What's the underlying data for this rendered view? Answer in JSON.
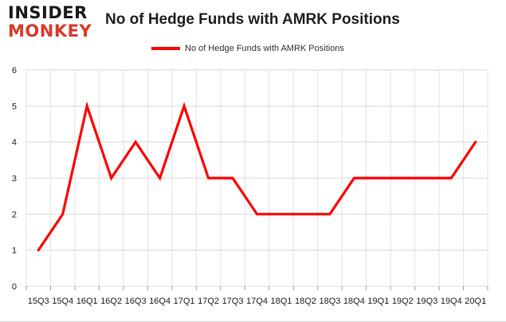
{
  "logo": {
    "line1": "INSIDER",
    "line2": "MONKEY"
  },
  "chart_data": {
    "type": "line",
    "title": "No of Hedge Funds with AMRK Positions",
    "xlabel": "",
    "ylabel": "",
    "categories": [
      "15Q3",
      "15Q4",
      "16Q1",
      "16Q2",
      "16Q3",
      "16Q4",
      "17Q1",
      "17Q2",
      "17Q3",
      "17Q4",
      "18Q1",
      "18Q2",
      "18Q3",
      "18Q4",
      "19Q1",
      "19Q2",
      "19Q3",
      "19Q4",
      "20Q1"
    ],
    "series": [
      {
        "name": "No of Hedge Funds with AMRK Positions",
        "values": [
          1,
          2,
          5,
          3,
          4,
          3,
          5,
          3,
          3,
          2,
          2,
          2,
          2,
          3,
          3,
          3,
          3,
          3,
          4
        ],
        "color": "#ff0000"
      }
    ],
    "ylim": [
      0,
      6
    ],
    "yticks": [
      0,
      1,
      2,
      3,
      4,
      5,
      6
    ],
    "grid": true,
    "legend": "top-center"
  }
}
